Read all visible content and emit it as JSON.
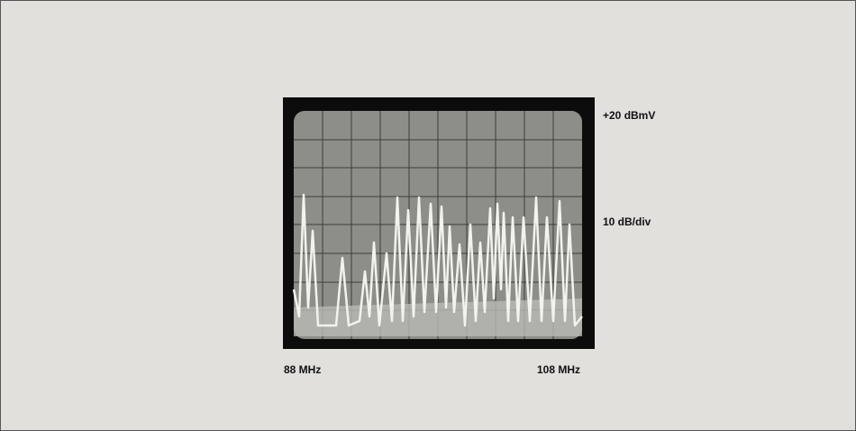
{
  "display": {
    "reference_level": "+20 dBmV",
    "scale": "10 dB/div",
    "start_frequency": "88 MHz",
    "stop_frequency": "108 MHz"
  }
}
